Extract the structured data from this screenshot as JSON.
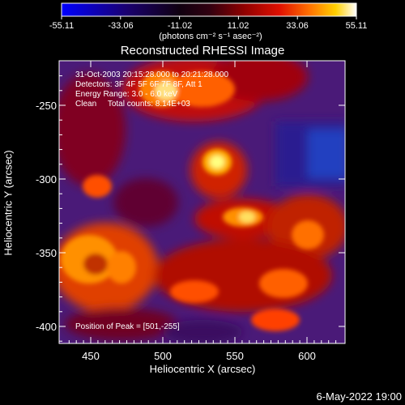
{
  "colorbar": {
    "tick_labels": [
      "-55.11",
      "-33.06",
      "-11.02",
      "11.02",
      "33.06",
      "55.11"
    ],
    "unit_label": "(photons cm⁻² s⁻¹ asec⁻²)",
    "stops": [
      "#0000ff",
      "#000044",
      "#000000",
      "#3a0020",
      "#800000",
      "#c00000",
      "#ff3000",
      "#ff9000",
      "#ffd000",
      "#ffffff"
    ]
  },
  "title": "Reconstructed RHESSI Image",
  "annotations": {
    "time_range": "31-Oct-2003 20:15:28.000 to 20:21:28.000",
    "detectors": "Detectors: 3F 4F 5F 6F 7F 8F, Att 1",
    "energy_range": "Energy Range: 3.0 - 6.0 keV",
    "algorithm": "Clean     Total counts: 8.14E+03",
    "peak_position": "Position of Peak = [501,-255]"
  },
  "axes": {
    "xlabel": "Heliocentric X (arcsec)",
    "ylabel": "Heliocentric Y (arcsec)",
    "xticks": [
      "450",
      "500",
      "550",
      "600"
    ],
    "yticks": [
      "-250",
      "-300",
      "-350",
      "-400"
    ]
  },
  "timestamp": "6-May-2022 19:00"
}
